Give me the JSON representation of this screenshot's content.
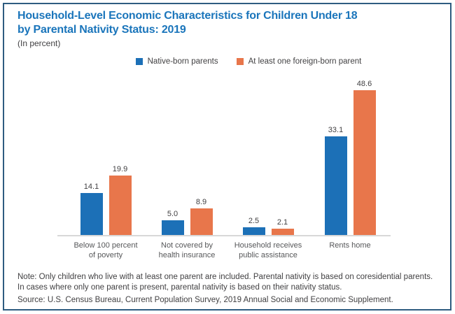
{
  "header": {
    "title_line1": "Household-Level Economic Characteristics for Children Under 18",
    "title_line2": "by Parental Nativity Status: 2019",
    "subtitle": "(In percent)"
  },
  "colors": {
    "title_blue": "#1A75BB",
    "bar_blue": "#1C70B7",
    "bar_orange": "#E8764B",
    "frame_border": "#2E5C80",
    "axis_line": "#D8D8D8",
    "text_dark": "#414042",
    "text_gray": "#565759"
  },
  "chart_data": {
    "type": "bar",
    "title": "Household-Level Economic Characteristics for Children Under 18 by Parental Nativity Status: 2019",
    "subtitle": "(In percent)",
    "categories": [
      "Below 100 percent\nof poverty",
      "Not covered by\nhealth insurance",
      "Household receives\npublic assistance",
      "Rents home"
    ],
    "series": [
      {
        "name": "Native-born parents",
        "color": "#1C70B7",
        "values": [
          14.1,
          5.0,
          2.5,
          33.1
        ]
      },
      {
        "name": "At least one foreign-born parent",
        "color": "#E8764B",
        "values": [
          19.9,
          8.9,
          2.1,
          48.6
        ]
      }
    ],
    "xlabel": "",
    "ylabel": "",
    "ylim": [
      0,
      52
    ],
    "grid": false,
    "legend_position": "top-center",
    "value_labels": true
  },
  "footer": {
    "note": "Note: Only children who live with at least one parent are included. Parental nativity is based on coresidential parents. In cases where only one parent is present, parental nativity is based on their nativity status.",
    "source": "Source: U.S. Census Bureau, Current Population Survey, 2019 Annual Social and Economic Supplement."
  }
}
